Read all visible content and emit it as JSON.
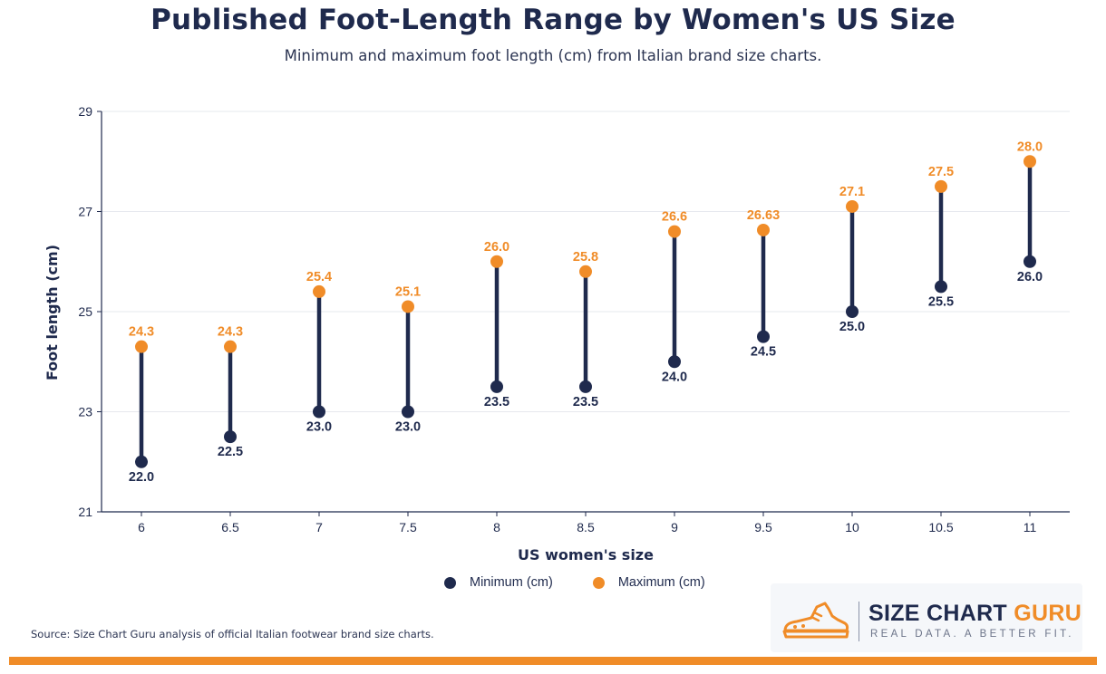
{
  "chart_data": {
    "type": "dumbbell",
    "title": "Published Foot-Length Range by Women's US Size",
    "subtitle": "Minimum and maximum foot length (cm) from Italian brand size charts.",
    "xlabel": "US women's size",
    "ylabel": "Foot length (cm)",
    "ylim": [
      21,
      29
    ],
    "yticks": [
      "21",
      "23",
      "25",
      "27",
      "29"
    ],
    "grid": true,
    "legend_position": "bottom-center",
    "categories": [
      "6",
      "6.5",
      "7",
      "7.5",
      "8",
      "8.5",
      "9",
      "9.5",
      "10",
      "10.5",
      "11"
    ],
    "series": [
      {
        "name": "Minimum (cm)",
        "color": "#1f2a4d",
        "values": [
          22.0,
          22.5,
          23.0,
          23.0,
          23.5,
          23.5,
          24.0,
          24.5,
          25.0,
          25.5,
          26.0
        ],
        "labels": [
          "22.0",
          "22.5",
          "23.0",
          "23.0",
          "23.5",
          "23.5",
          "24.0",
          "24.5",
          "25.0",
          "25.5",
          "26.0"
        ]
      },
      {
        "name": "Maximum (cm)",
        "color": "#f08c28",
        "values": [
          24.3,
          24.3,
          25.4,
          25.1,
          26.0,
          25.8,
          26.6,
          26.63,
          27.1,
          27.5,
          28.0
        ],
        "labels": [
          "24.3",
          "24.3",
          "25.4",
          "25.1",
          "26.0",
          "25.8",
          "26.6",
          "26.63",
          "27.1",
          "27.5",
          "28.0"
        ]
      }
    ]
  },
  "footer": {
    "source": "Source: Size Chart Guru analysis of official Italian footwear brand size charts.",
    "brand_name_part1": "SIZE CHART",
    "brand_name_part2": "GURU",
    "brand_tagline": "REAL DATA. A BETTER FIT.",
    "brand_icon": "sneaker-icon"
  },
  "colors": {
    "navy": "#1f2a4d",
    "orange": "#f08c28",
    "grid": "#e6e8ee"
  }
}
